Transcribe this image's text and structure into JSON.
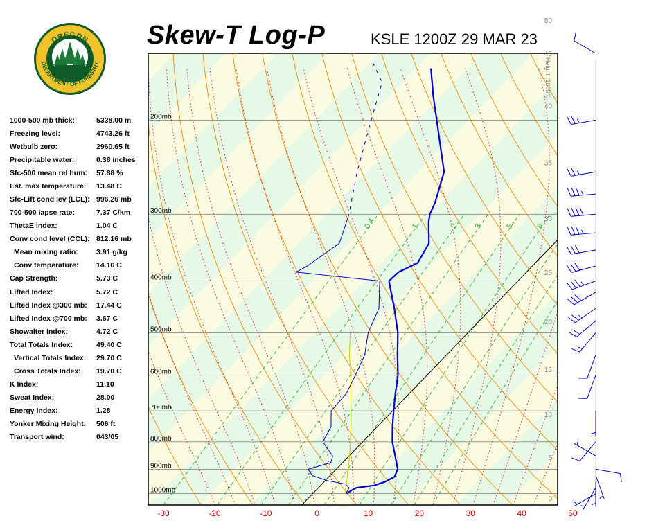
{
  "header": {
    "title": "Skew-T Log-P",
    "station": "KSLE 1200Z 29 MAR 23"
  },
  "logo": {
    "top_text": "OREGON",
    "bottom_text": "DEPARTMENT OF FORESTRY"
  },
  "indices": [
    {
      "label": "1000-500 mb thick:",
      "value": "5338.00 m",
      "indent": false
    },
    {
      "label": "Freezing level:",
      "value": "4743.26 ft",
      "indent": false
    },
    {
      "label": "Wetbulb zero:",
      "value": "2960.65 ft",
      "indent": false
    },
    {
      "label": "Precipitable water:",
      "value": "0.38 inches",
      "indent": false
    },
    {
      "label": "Sfc-500 mean rel hum:",
      "value": "57.88 %",
      "indent": false
    },
    {
      "label": "Est. max temperature:",
      "value": "13.48 C",
      "indent": false
    },
    {
      "label": "Sfc-Lift cond lev (LCL):",
      "value": "996.26 mb",
      "indent": false
    },
    {
      "label": "700-500 lapse rate:",
      "value": "7.37 C/km",
      "indent": false
    },
    {
      "label": "ThetaE index:",
      "value": "1.04 C",
      "indent": false
    },
    {
      "label": "Conv cond level (CCL):",
      "value": "812.16 mb",
      "indent": false
    },
    {
      "label": "Mean mixing ratio:",
      "value": "3.91 g/kg",
      "indent": true
    },
    {
      "label": "Conv temperature:",
      "value": "14.16 C",
      "indent": true
    },
    {
      "label": "Cap Strength:",
      "value": "5.73 C",
      "indent": false
    },
    {
      "label": "Lifted Index:",
      "value": "5.72 C",
      "indent": false
    },
    {
      "label": "Lifted Index @300 mb:",
      "value": "17.44 C",
      "indent": false
    },
    {
      "label": "Lifted Index @700 mb:",
      "value": "3.67 C",
      "indent": false
    },
    {
      "label": "Showalter Index:",
      "value": "4.72 C",
      "indent": false
    },
    {
      "label": "Total Totals Index:",
      "value": "49.40 C",
      "indent": false
    },
    {
      "label": "Vertical Totals Index:",
      "value": "29.70 C",
      "indent": true
    },
    {
      "label": "Cross Totals Index:",
      "value": "19.70 C",
      "indent": true
    },
    {
      "label": "K Index:",
      "value": "11.10",
      "indent": false
    },
    {
      "label": "Sweat Index:",
      "value": "28.00",
      "indent": false
    },
    {
      "label": "Energy Index:",
      "value": "1.28",
      "indent": false
    },
    {
      "label": "Yonker Mixing Height:",
      "value": "506 ft",
      "indent": false
    },
    {
      "label": "Transport wind:",
      "value": "043/05",
      "indent": false
    }
  ],
  "chart_data": {
    "type": "line",
    "title": "Skew-T Log-P",
    "xlabel": "",
    "ylabel": "",
    "xlim": [
      -30,
      50
    ],
    "ylim_mb": [
      1050,
      150
    ],
    "x_ticks": [
      -30,
      -20,
      -10,
      0,
      10,
      20,
      30,
      40,
      50
    ],
    "pressure_labels": [
      {
        "p": 200,
        "label": "200mb"
      },
      {
        "p": 300,
        "label": "300mb"
      },
      {
        "p": 400,
        "label": "400mb"
      },
      {
        "p": 500,
        "label": "500mb"
      },
      {
        "p": 600,
        "label": "600mb"
      },
      {
        "p": 700,
        "label": "700mb"
      },
      {
        "p": 800,
        "label": "800mb"
      },
      {
        "p": 900,
        "label": "900mb"
      },
      {
        "p": 1000,
        "label": "1000mb"
      }
    ],
    "height_axis": {
      "label": "Height (1000ft)",
      "ticks": [
        {
          "kft": 0,
          "p": 1019
        },
        {
          "kft": 5,
          "p": 855
        },
        {
          "kft": 10,
          "p": 710
        },
        {
          "kft": 15,
          "p": 585
        },
        {
          "kft": 20,
          "p": 476
        },
        {
          "kft": 25,
          "p": 385
        },
        {
          "kft": 30,
          "p": 305
        },
        {
          "kft": 35,
          "p": 240
        },
        {
          "kft": 40,
          "p": 188
        },
        {
          "kft": 45,
          "p": 150
        },
        {
          "kft": 50,
          "p": 130
        }
      ]
    },
    "mixing_ratio_labels": [
      "0.4",
      "1",
      "2",
      "3",
      "5",
      "8"
    ],
    "series": [
      {
        "name": "",
        "role": "temperature",
        "color": "#0000cc",
        "points": [
          {
            "p": 1000,
            "t": 6.6
          },
          {
            "p": 985,
            "t": 7.0
          },
          {
            "p": 975,
            "t": 7.4
          },
          {
            "p": 965,
            "t": 10.5
          },
          {
            "p": 950,
            "t": 11.9
          },
          {
            "p": 930,
            "t": 12.8
          },
          {
            "p": 900,
            "t": 12.0
          },
          {
            "p": 850,
            "t": 9.0
          },
          {
            "p": 800,
            "t": 5.8
          },
          {
            "p": 750,
            "t": 3.0
          },
          {
            "p": 700,
            "t": 0.2
          },
          {
            "p": 650,
            "t": -2.7
          },
          {
            "p": 600,
            "t": -5.7
          },
          {
            "p": 550,
            "t": -9.6
          },
          {
            "p": 500,
            "t": -13.7
          },
          {
            "p": 450,
            "t": -19.0
          },
          {
            "p": 400,
            "t": -25.2
          },
          {
            "p": 385,
            "t": -25.0
          },
          {
            "p": 370,
            "t": -23.0
          },
          {
            "p": 340,
            "t": -24.5
          },
          {
            "p": 310,
            "t": -28.6
          },
          {
            "p": 300,
            "t": -29.8
          },
          {
            "p": 285,
            "t": -31.0
          },
          {
            "p": 250,
            "t": -35.0
          },
          {
            "p": 200,
            "t": -46.2
          },
          {
            "p": 180,
            "t": -51.5
          },
          {
            "p": 160,
            "t": -57.1
          }
        ]
      },
      {
        "name": "",
        "role": "dewpoint",
        "color": "#0000cc",
        "points": [
          {
            "p": 1000,
            "t": 6.5
          },
          {
            "p": 975,
            "t": 6.0
          },
          {
            "p": 960,
            "t": 4.7
          },
          {
            "p": 945,
            "t": 0.3
          },
          {
            "p": 930,
            "t": -2.5
          },
          {
            "p": 925,
            "t": -3.5
          },
          {
            "p": 900,
            "t": -5.5
          },
          {
            "p": 875,
            "t": -2.3
          },
          {
            "p": 850,
            "t": -3.2
          },
          {
            "p": 800,
            "t": -7.8
          },
          {
            "p": 750,
            "t": -9.0
          },
          {
            "p": 700,
            "t": -12.0
          },
          {
            "p": 650,
            "t": -12.3
          },
          {
            "p": 600,
            "t": -14.0
          },
          {
            "p": 550,
            "t": -16.0
          },
          {
            "p": 500,
            "t": -19.5
          },
          {
            "p": 450,
            "t": -22.0
          },
          {
            "p": 400,
            "t": -27.0
          },
          {
            "p": 385,
            "t": -45.0
          },
          {
            "p": 375,
            "t": -44.0
          },
          {
            "p": 340,
            "t": -42.0
          },
          {
            "p": 300,
            "t": -45.6
          },
          {
            "p": 250,
            "t": -52.0
          },
          {
            "p": 200,
            "t": -59.0
          },
          {
            "p": 170,
            "t": -64.0
          },
          {
            "p": 155,
            "t": -70.0
          }
        ]
      },
      {
        "name": "",
        "role": "parcel",
        "color": "#cccc00",
        "points": [
          {
            "p": 1000,
            "t": 6.6
          },
          {
            "p": 996,
            "t": 6.2
          },
          {
            "p": 950,
            "t": 4.4
          },
          {
            "p": 900,
            "t": 2.3
          },
          {
            "p": 850,
            "t": 0.1
          },
          {
            "p": 800,
            "t": -2.4
          },
          {
            "p": 750,
            "t": -5.1
          },
          {
            "p": 700,
            "t": -8.1
          },
          {
            "p": 650,
            "t": -11.4
          },
          {
            "p": 600,
            "t": -14.9
          },
          {
            "p": 550,
            "t": -19.0
          },
          {
            "p": 500,
            "t": -23.0
          }
        ]
      }
    ],
    "wind_barbs": [
      {
        "p": 1000,
        "dir": 240,
        "kt": 5
      },
      {
        "p": 975,
        "dir": 210,
        "kt": 5
      },
      {
        "p": 950,
        "dir": 180,
        "kt": 5
      },
      {
        "p": 925,
        "dir": 160,
        "kt": 5
      },
      {
        "p": 900,
        "dir": 100,
        "kt": 10
      },
      {
        "p": 850,
        "dir": 300,
        "kt": 5
      },
      {
        "p": 800,
        "dir": 220,
        "kt": 10
      },
      {
        "p": 700,
        "dir": 180,
        "kt": 5
      },
      {
        "p": 600,
        "dir": 200,
        "kt": 10
      },
      {
        "p": 550,
        "dir": 200,
        "kt": 10
      },
      {
        "p": 500,
        "dir": 220,
        "kt": 15
      },
      {
        "p": 475,
        "dir": 230,
        "kt": 20
      },
      {
        "p": 450,
        "dir": 235,
        "kt": 25
      },
      {
        "p": 420,
        "dir": 240,
        "kt": 30
      },
      {
        "p": 400,
        "dir": 250,
        "kt": 35
      },
      {
        "p": 375,
        "dir": 255,
        "kt": 30
      },
      {
        "p": 350,
        "dir": 260,
        "kt": 30
      },
      {
        "p": 325,
        "dir": 265,
        "kt": 35
      },
      {
        "p": 300,
        "dir": 265,
        "kt": 40
      },
      {
        "p": 275,
        "dir": 265,
        "kt": 35
      },
      {
        "p": 250,
        "dir": 260,
        "kt": 25
      },
      {
        "p": 200,
        "dir": 260,
        "kt": 25
      },
      {
        "p": 150,
        "dir": 300,
        "kt": 10
      }
    ]
  }
}
